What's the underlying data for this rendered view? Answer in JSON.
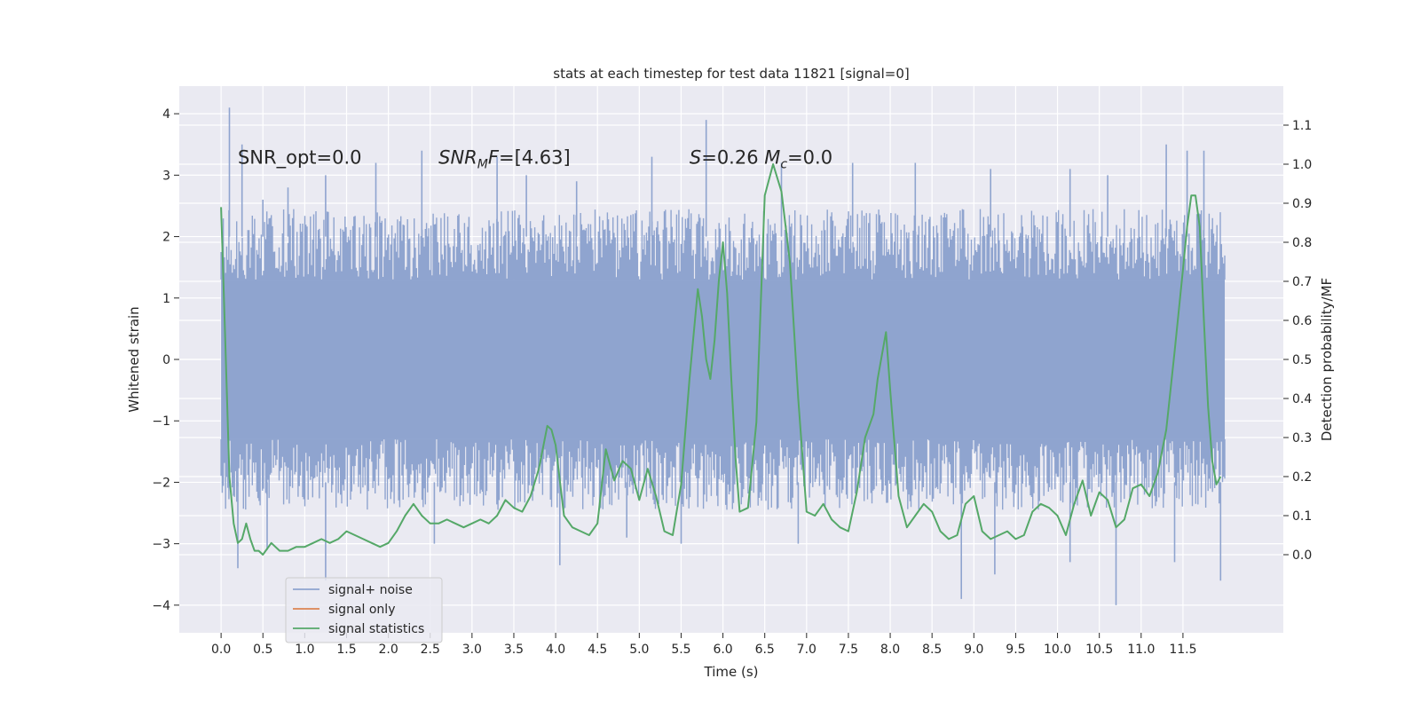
{
  "chart_data": {
    "type": "line",
    "title": "stats at each timestep for test data 11821 [signal=0]",
    "xlabel": "Time (s)",
    "ylabel_left": "Whitened strain",
    "ylabel_right": "Detection probability/MF",
    "xlim": [
      -0.5,
      12.7
    ],
    "ylim_left": [
      -4.45,
      4.45
    ],
    "ylim_right": [
      -0.2,
      1.2
    ],
    "x_ticks": [
      0.0,
      0.5,
      1.0,
      1.5,
      2.0,
      2.5,
      3.0,
      3.5,
      4.0,
      4.5,
      5.0,
      5.5,
      6.0,
      6.5,
      7.0,
      7.5,
      8.0,
      8.5,
      9.0,
      9.5,
      10.0,
      10.5,
      11.0,
      11.5
    ],
    "x_tick_labels": [
      "0.0",
      "0.5",
      "1.0",
      "1.5",
      "2.0",
      "2.5",
      "3.0",
      "3.5",
      "4.0",
      "4.5",
      "5.0",
      "5.5",
      "6.0",
      "6.5",
      "7.0",
      "7.5",
      "8.0",
      "8.5",
      "9.0",
      "9.5",
      "10.0",
      "10.5",
      "11.0",
      "11.5"
    ],
    "y_left_ticks": [
      -4,
      -3,
      -2,
      -1,
      0,
      1,
      2,
      3,
      4
    ],
    "y_left_tick_labels": [
      "−4",
      "−3",
      "−2",
      "−1",
      "0",
      "1",
      "2",
      "3",
      "4"
    ],
    "y_right_ticks": [
      0.0,
      0.1,
      0.2,
      0.3,
      0.4,
      0.5,
      0.6,
      0.7,
      0.8,
      0.9,
      1.0,
      1.1
    ],
    "y_right_tick_labels": [
      "0.0",
      "0.1",
      "0.2",
      "0.3",
      "0.4",
      "0.5",
      "0.6",
      "0.7",
      "0.8",
      "0.9",
      "1.0",
      "1.1"
    ],
    "grid": true,
    "legend_position": "lower-left",
    "annotations": [
      {
        "text": "SNR_opt=0.0",
        "x": 0.2,
        "y": 3.3
      },
      {
        "text": "SNR_MF=[4.63]",
        "x": 2.6,
        "y": 3.3
      },
      {
        "text": "S=0.26   M_c=0.0",
        "x": 5.6,
        "y": 3.3
      }
    ],
    "series": [
      {
        "name": "signal+ noise",
        "color": "#8fa4cf",
        "axis": "left",
        "kind": "noise-band",
        "x_range": [
          0.0,
          12.0
        ],
        "core_range": [
          -1.3,
          1.3
        ],
        "typical_range": [
          -2.2,
          2.2
        ],
        "peaks_positive": [
          [
            0.1,
            4.1
          ],
          [
            0.25,
            3.5
          ],
          [
            0.5,
            2.6
          ],
          [
            0.8,
            2.8
          ],
          [
            1.25,
            3.0
          ],
          [
            1.85,
            3.2
          ],
          [
            2.4,
            3.4
          ],
          [
            3.3,
            3.3
          ],
          [
            3.65,
            3.0
          ],
          [
            4.25,
            2.9
          ],
          [
            5.15,
            3.3
          ],
          [
            5.8,
            3.9
          ],
          [
            6.7,
            3.2
          ],
          [
            7.55,
            3.2
          ],
          [
            8.3,
            3.2
          ],
          [
            9.2,
            3.1
          ],
          [
            10.15,
            3.1
          ],
          [
            10.6,
            3.0
          ],
          [
            11.3,
            3.5
          ],
          [
            11.55,
            3.4
          ],
          [
            11.75,
            3.4
          ]
        ],
        "peaks_negative": [
          [
            0.2,
            -3.4
          ],
          [
            0.55,
            -3.1
          ],
          [
            1.25,
            -3.6
          ],
          [
            2.55,
            -3.0
          ],
          [
            4.05,
            -3.35
          ],
          [
            4.85,
            -2.9
          ],
          [
            5.5,
            -3.0
          ],
          [
            6.9,
            -3.0
          ],
          [
            8.85,
            -3.9
          ],
          [
            9.25,
            -3.5
          ],
          [
            10.15,
            -3.3
          ],
          [
            10.7,
            -4.0
          ],
          [
            11.4,
            -3.3
          ],
          [
            11.95,
            -3.6
          ]
        ]
      },
      {
        "name": "signal only",
        "color": "#dd8452",
        "axis": "left",
        "x": [],
        "y": []
      },
      {
        "name": "signal statistics",
        "color": "#55a868",
        "axis": "right",
        "x": [
          0.0,
          0.05,
          0.1,
          0.15,
          0.2,
          0.25,
          0.3,
          0.35,
          0.4,
          0.45,
          0.5,
          0.6,
          0.7,
          0.8,
          0.9,
          1.0,
          1.1,
          1.2,
          1.3,
          1.4,
          1.5,
          1.6,
          1.7,
          1.8,
          1.9,
          2.0,
          2.1,
          2.2,
          2.3,
          2.4,
          2.5,
          2.6,
          2.7,
          2.8,
          2.9,
          3.0,
          3.1,
          3.2,
          3.3,
          3.4,
          3.5,
          3.6,
          3.7,
          3.8,
          3.9,
          3.95,
          4.0,
          4.1,
          4.2,
          4.3,
          4.4,
          4.5,
          4.6,
          4.7,
          4.8,
          4.9,
          5.0,
          5.1,
          5.2,
          5.3,
          5.4,
          5.5,
          5.6,
          5.7,
          5.75,
          5.8,
          5.85,
          5.9,
          5.95,
          6.0,
          6.05,
          6.1,
          6.15,
          6.2,
          6.3,
          6.4,
          6.5,
          6.6,
          6.7,
          6.8,
          6.9,
          7.0,
          7.1,
          7.2,
          7.3,
          7.4,
          7.5,
          7.6,
          7.7,
          7.8,
          7.85,
          7.95,
          8.0,
          8.1,
          8.2,
          8.3,
          8.4,
          8.5,
          8.6,
          8.7,
          8.8,
          8.9,
          9.0,
          9.1,
          9.2,
          9.3,
          9.4,
          9.5,
          9.6,
          9.7,
          9.8,
          9.9,
          10.0,
          10.1,
          10.2,
          10.3,
          10.4,
          10.5,
          10.6,
          10.7,
          10.8,
          10.9,
          11.0,
          11.1,
          11.2,
          11.3,
          11.4,
          11.5,
          11.55,
          11.6,
          11.65,
          11.7,
          11.75,
          11.8,
          11.85,
          11.9,
          11.95
        ],
        "y": [
          0.89,
          0.55,
          0.2,
          0.08,
          0.03,
          0.04,
          0.08,
          0.04,
          0.01,
          0.01,
          0.0,
          0.03,
          0.01,
          0.01,
          0.02,
          0.02,
          0.03,
          0.04,
          0.03,
          0.04,
          0.06,
          0.05,
          0.04,
          0.03,
          0.02,
          0.03,
          0.06,
          0.1,
          0.13,
          0.1,
          0.08,
          0.08,
          0.09,
          0.08,
          0.07,
          0.08,
          0.09,
          0.08,
          0.1,
          0.14,
          0.12,
          0.11,
          0.15,
          0.22,
          0.33,
          0.32,
          0.28,
          0.1,
          0.07,
          0.06,
          0.05,
          0.08,
          0.27,
          0.19,
          0.24,
          0.22,
          0.14,
          0.22,
          0.15,
          0.06,
          0.05,
          0.18,
          0.45,
          0.68,
          0.61,
          0.5,
          0.45,
          0.55,
          0.7,
          0.8,
          0.67,
          0.45,
          0.25,
          0.11,
          0.12,
          0.34,
          0.92,
          1.0,
          0.93,
          0.75,
          0.4,
          0.11,
          0.1,
          0.13,
          0.09,
          0.07,
          0.06,
          0.16,
          0.3,
          0.36,
          0.45,
          0.57,
          0.42,
          0.15,
          0.07,
          0.1,
          0.13,
          0.11,
          0.06,
          0.04,
          0.05,
          0.13,
          0.15,
          0.06,
          0.04,
          0.05,
          0.06,
          0.04,
          0.05,
          0.11,
          0.13,
          0.12,
          0.1,
          0.05,
          0.13,
          0.19,
          0.1,
          0.16,
          0.14,
          0.07,
          0.09,
          0.17,
          0.18,
          0.15,
          0.21,
          0.32,
          0.52,
          0.73,
          0.84,
          0.92,
          0.92,
          0.84,
          0.6,
          0.38,
          0.24,
          0.18,
          0.2
        ]
      }
    ]
  }
}
